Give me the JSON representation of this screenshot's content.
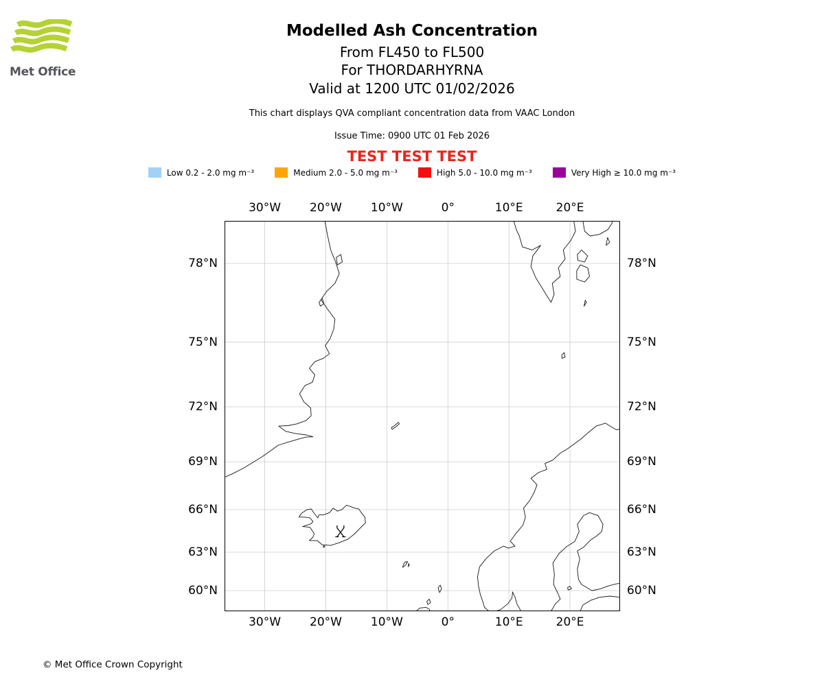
{
  "logo": {
    "text": "Met Office",
    "wave_color": "#b4d234",
    "text_color": "#54565b"
  },
  "header": {
    "title": "Modelled Ash Concentration",
    "subtitle_flight_levels": "From FL450 to FL500",
    "subtitle_volcano": "For THORDARHYRNA",
    "subtitle_valid_time": "Valid at 1200 UTC 01/02/2026",
    "note": "This chart displays QVA compliant concentration data from VAAC London",
    "issue_time": "Issue Time: 0900 UTC 01 Feb 2026",
    "test_banner": "TEST TEST TEST",
    "test_banner_color": "#e8251c"
  },
  "legend": {
    "items": [
      {
        "label": "Low 0.2 - 2.0 mg m⁻³",
        "color": "#a1d2f6"
      },
      {
        "label": "Medium 2.0 - 5.0 mg m⁻³",
        "color": "#ffa502"
      },
      {
        "label": "High 5.0 - 10.0 mg m⁻³",
        "color": "#f41010"
      },
      {
        "label": "Very High ≥ 10.0 mg m⁻³",
        "color": "#9b009b"
      }
    ]
  },
  "map": {
    "lon_ticks": [
      {
        "label": "30°W",
        "lon": -30
      },
      {
        "label": "20°W",
        "lon": -20
      },
      {
        "label": "10°W",
        "lon": -10
      },
      {
        "label": "0°",
        "lon": 0
      },
      {
        "label": "10°E",
        "lon": 10
      },
      {
        "label": "20°E",
        "lon": 20
      }
    ],
    "lat_ticks": [
      {
        "label": "78°N",
        "lat": 78
      },
      {
        "label": "75°N",
        "lat": 75
      },
      {
        "label": "72°N",
        "lat": 72
      },
      {
        "label": "69°N",
        "lat": 69
      },
      {
        "label": "66°N",
        "lat": 66
      },
      {
        "label": "63°N",
        "lat": 63
      },
      {
        "label": "60°N",
        "lat": 60
      }
    ],
    "volcano_marker": {
      "name": "THORDARHYRNA",
      "lon": -17.6,
      "lat": 64.42
    }
  },
  "footer": {
    "copyright": "© Met Office Crown Copyright"
  }
}
